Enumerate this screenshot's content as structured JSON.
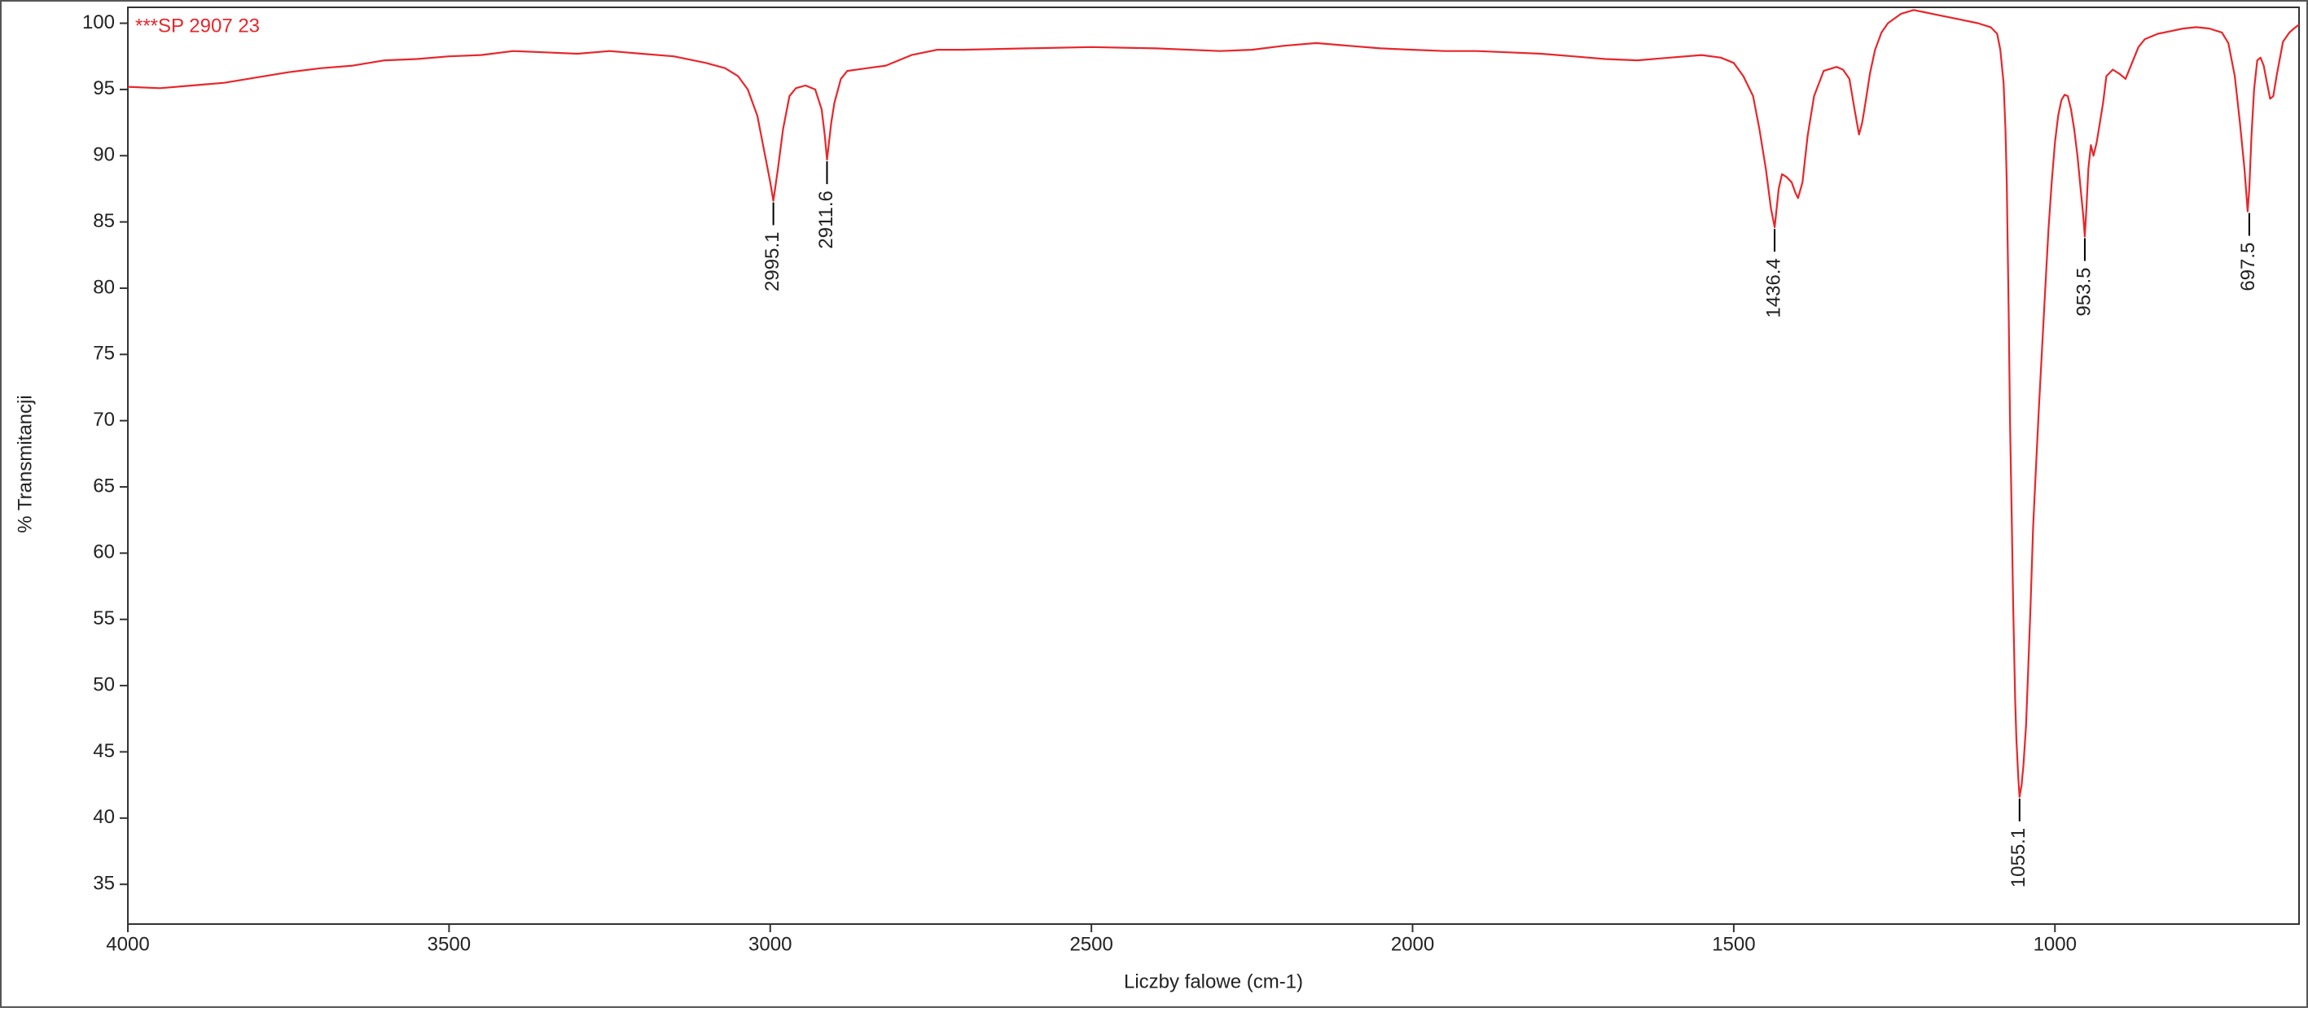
{
  "chart_data": {
    "type": "line",
    "xlabel": "Liczby falowe (cm-1)",
    "ylabel": "% Transmitancji",
    "x": [
      4000,
      3950,
      3900,
      3850,
      3800,
      3750,
      3700,
      3650,
      3600,
      3550,
      3500,
      3450,
      3400,
      3350,
      3300,
      3250,
      3200,
      3150,
      3100,
      3070,
      3050,
      3035,
      3020,
      3010,
      3000,
      2995.1,
      2988,
      2980,
      2970,
      2960,
      2945,
      2930,
      2920,
      2915,
      2911.6,
      2905,
      2900,
      2890,
      2880,
      2850,
      2820,
      2780,
      2740,
      2700,
      2600,
      2500,
      2400,
      2300,
      2250,
      2200,
      2150,
      2100,
      2050,
      2000,
      1950,
      1900,
      1850,
      1800,
      1750,
      1700,
      1650,
      1600,
      1550,
      1520,
      1500,
      1485,
      1470,
      1460,
      1450,
      1442,
      1436.4,
      1430,
      1425,
      1418,
      1410,
      1404,
      1400,
      1393,
      1385,
      1375,
      1360,
      1340,
      1330,
      1320,
      1312,
      1305,
      1300,
      1295,
      1288,
      1280,
      1270,
      1260,
      1240,
      1220,
      1200,
      1180,
      1150,
      1120,
      1100,
      1090,
      1085,
      1080,
      1077,
      1075,
      1072,
      1070,
      1067,
      1065,
      1062,
      1060,
      1057,
      1055.1,
      1052,
      1049,
      1045,
      1041,
      1038,
      1034,
      1030,
      1025,
      1020,
      1015,
      1010,
      1005,
      1000,
      995,
      990,
      985,
      980,
      975,
      970,
      965,
      960,
      956,
      953.5,
      951,
      948,
      944,
      940,
      935,
      930,
      925,
      920,
      910,
      900,
      890,
      880,
      870,
      860,
      840,
      820,
      800,
      780,
      760,
      740,
      730,
      720,
      712,
      705,
      700,
      697.5,
      694,
      690,
      685,
      680,
      675,
      670,
      665,
      660,
      655,
      650,
      645,
      635,
      628,
      620
    ],
    "series": [
      {
        "name": "***SP 2907 23",
        "color": "#e8262b",
        "values": [
          95.2,
          95.1,
          95.3,
          95.5,
          95.9,
          96.3,
          96.6,
          96.8,
          97.2,
          97.3,
          97.5,
          97.6,
          97.9,
          97.8,
          97.7,
          97.9,
          97.7,
          97.5,
          97.0,
          96.6,
          96.0,
          95.0,
          93.0,
          90.5,
          88.0,
          86.6,
          89.0,
          92.0,
          94.5,
          95.1,
          95.3,
          95.0,
          93.5,
          91.5,
          89.7,
          92.5,
          94.0,
          95.8,
          96.4,
          96.6,
          96.8,
          97.6,
          98.0,
          98.0,
          98.1,
          98.2,
          98.1,
          97.9,
          98.0,
          98.3,
          98.5,
          98.3,
          98.1,
          98.0,
          97.9,
          97.9,
          97.8,
          97.7,
          97.5,
          97.3,
          97.2,
          97.4,
          97.6,
          97.4,
          97.0,
          96.0,
          94.5,
          92.0,
          89.0,
          86.0,
          84.6,
          87.5,
          88.6,
          88.4,
          88.0,
          87.2,
          86.8,
          88.0,
          91.5,
          94.5,
          96.4,
          96.7,
          96.5,
          95.8,
          93.5,
          91.6,
          92.5,
          94.0,
          96.2,
          98.0,
          99.3,
          100.0,
          100.7,
          101.0,
          100.8,
          100.6,
          100.3,
          100.0,
          99.7,
          99.2,
          98.0,
          95.5,
          92.0,
          88.0,
          78.0,
          70.0,
          62.0,
          56.0,
          49.0,
          46.0,
          43.0,
          41.6,
          42.5,
          44.0,
          47.0,
          52.0,
          56.0,
          62.0,
          66.0,
          71.0,
          75.5,
          80.0,
          84.5,
          88.0,
          91.0,
          93.0,
          94.2,
          94.6,
          94.5,
          93.5,
          92.0,
          90.0,
          87.5,
          85.5,
          83.9,
          86.0,
          89.0,
          90.8,
          90.0,
          91.0,
          92.5,
          94.0,
          96.0,
          96.5,
          96.2,
          95.8,
          97.0,
          98.2,
          98.8,
          99.2,
          99.4,
          99.6,
          99.7,
          99.6,
          99.3,
          98.5,
          96.0,
          92.5,
          89.0,
          85.8,
          87.5,
          91.5,
          95.0,
          97.2,
          97.4,
          96.8,
          95.5,
          94.3,
          94.5,
          96.0,
          97.3,
          98.6,
          99.3,
          99.6,
          99.9
        ]
      }
    ],
    "peaks": {
      "x": [
        2995.1,
        2911.6,
        1436.4,
        1055.1,
        953.5,
        697.5
      ],
      "y": [
        86.6,
        89.7,
        84.6,
        41.6,
        83.9,
        85.8
      ]
    },
    "xlim": [
      4000,
      620
    ],
    "xticks": [
      4000,
      3500,
      3000,
      2500,
      2000,
      1500,
      1000
    ],
    "ylim": [
      32,
      101.2
    ],
    "yticks": [
      35,
      40,
      45,
      50,
      55,
      60,
      65,
      70,
      75,
      80,
      85,
      90,
      95,
      100
    ],
    "x_reversed": true,
    "grid": false
  }
}
